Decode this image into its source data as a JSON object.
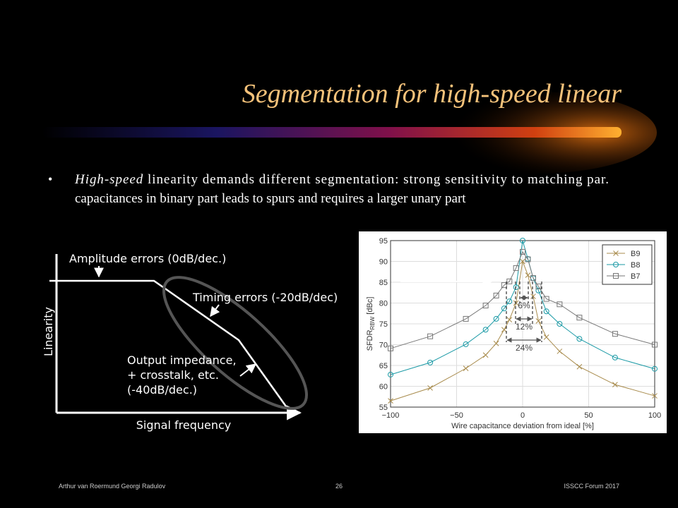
{
  "title": "Segmentation for high-speed linear",
  "bullet": {
    "italic": "High-speed",
    "lines": [
      " linearity demands different segmentation: strong sensitivity to matching par.",
      "capacitances in binary part leads to spurs and requires a larger unary part"
    ]
  },
  "diagram": {
    "amplitude": "Amplitude errors (0dB/dec.)",
    "timing": "Timing errors (-20dB/dec)",
    "output": [
      "Output impedance,",
      "+ crosstalk, etc.",
      "(-40dB/dec.)"
    ],
    "y_label": "Linearity",
    "x_label": "Signal frequency"
  },
  "chart_data": {
    "type": "line",
    "y_label": {
      "main": "SFDR",
      "sub": "RBW",
      "unit": " [dBc]"
    },
    "x_label": "Wire capacitance deviation from ideal [%]",
    "x": [
      -100,
      -70,
      -43,
      -28,
      -20,
      -14,
      -10,
      -5,
      0,
      4,
      8,
      12,
      18,
      28,
      43,
      70,
      100
    ],
    "series": [
      {
        "name": "B9",
        "color": "#a88b4c",
        "marker": "x",
        "values": [
          56.5,
          59.6,
          64.3,
          67.5,
          70.3,
          73.6,
          76,
          80,
          90,
          86.7,
          81.6,
          75.7,
          71.8,
          68.4,
          64.7,
          60.4,
          57.7
        ]
      },
      {
        "name": "B8",
        "color": "#1b9aa6",
        "marker": "circle",
        "values": [
          62.8,
          65.7,
          70.1,
          73.6,
          76.2,
          78.7,
          80.4,
          83.8,
          95,
          90.6,
          86,
          83,
          78,
          75,
          71.4,
          66.9,
          64.2
        ]
      },
      {
        "name": "B7",
        "color": "#777777",
        "marker": "square",
        "values": [
          69.1,
          72,
          76.2,
          79.4,
          81.8,
          84.3,
          85.2,
          88.4,
          92.3,
          90.5,
          86,
          84,
          81,
          79.7,
          76.5,
          72.6,
          70
        ]
      }
    ],
    "xlim": [
      -100,
      100
    ],
    "ylim": [
      55,
      95
    ],
    "xticks": [
      {
        "value": -100,
        "label": "−100"
      },
      {
        "value": -50,
        "label": "−50"
      },
      0,
      50,
      100
    ],
    "yticks": [
      55,
      60,
      65,
      70,
      75,
      80,
      85,
      90,
      95
    ],
    "grid": true,
    "legend": "top-right",
    "annotations": [
      "6%",
      "12%",
      "24%"
    ]
  },
  "footer": {
    "authors": "Arthur van Roermund Georgi Radulov",
    "page": "26",
    "event": "ISSCC Forum 2017"
  }
}
